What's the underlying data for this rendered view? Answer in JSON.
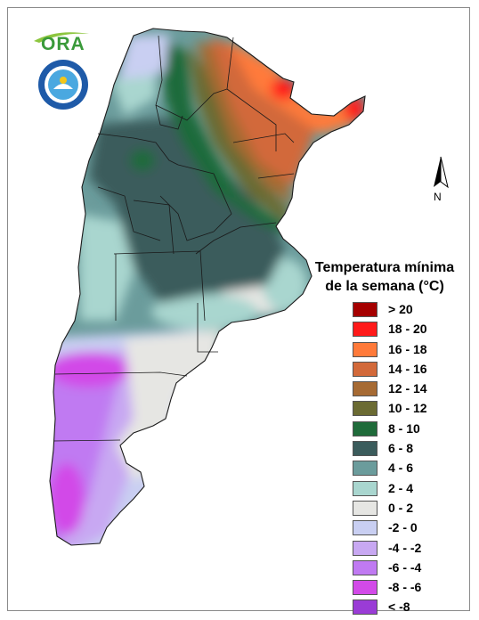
{
  "header": {
    "logo_text": "ORA",
    "seal_text": "SERVICIO METEOROLÓGICO NACIONAL · ARGENTINA"
  },
  "compass": {
    "label": "N"
  },
  "legend": {
    "title_line1": "Temperatura mínima",
    "title_line2": "de la semana (°C)",
    "items": [
      {
        "label": "> 20",
        "color": "#a50000"
      },
      {
        "label": "18 - 20",
        "color": "#ff1a1a"
      },
      {
        "label": "16 - 18",
        "color": "#ff7a3a"
      },
      {
        "label": "14 - 16",
        "color": "#d2693a"
      },
      {
        "label": "12 - 14",
        "color": "#a66a33"
      },
      {
        "label": "10 - 12",
        "color": "#6b6b33"
      },
      {
        "label": "8 - 10",
        "color": "#1f6b3a"
      },
      {
        "label": "6 - 8",
        "color": "#3b5c5c"
      },
      {
        "label": "4 - 6",
        "color": "#6b9c9c"
      },
      {
        "label": "2 - 4",
        "color": "#a9d6cf"
      },
      {
        "label": "0 - 2",
        "color": "#e6e6e3"
      },
      {
        "label": "-2 - 0",
        "color": "#c9cff2"
      },
      {
        "label": "-4 - -2",
        "color": "#c8a8f2"
      },
      {
        "label": "-6 - -4",
        "color": "#c07af2"
      },
      {
        "label": "-8 - -6",
        "color": "#d24ae8"
      },
      {
        "label": "< -8",
        "color": "#9a3cd6"
      }
    ]
  }
}
